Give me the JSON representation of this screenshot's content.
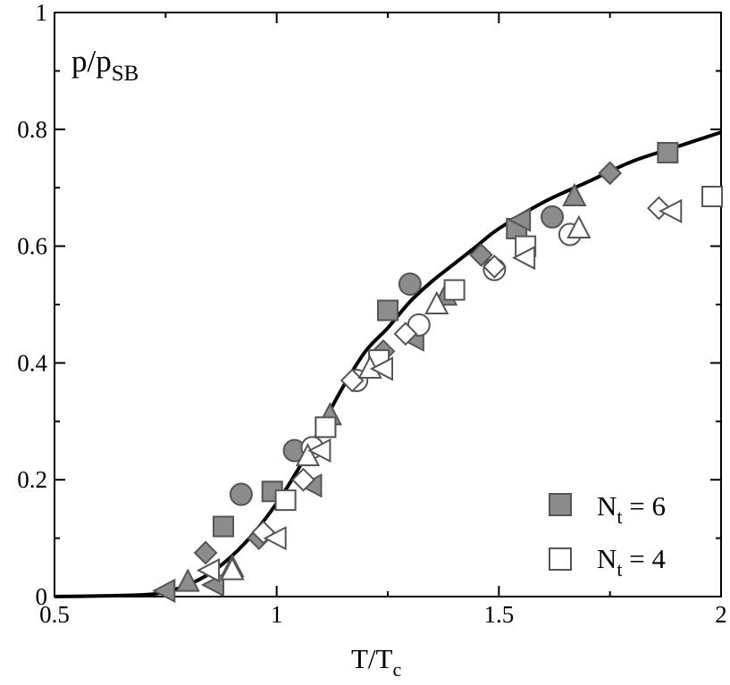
{
  "chart_data": {
    "type": "scatter",
    "title": "",
    "xlabel": "T/T",
    "xlabel_sub": "c",
    "ylabel": "p/p",
    "ylabel_sub": "SB",
    "xlim": [
      0.5,
      2.0
    ],
    "ylim": [
      0.0,
      1.0
    ],
    "x_ticks": [
      "0.5",
      "1",
      "1.5",
      "2"
    ],
    "x_tick_values": [
      0.5,
      1.0,
      1.5,
      2.0
    ],
    "y_ticks": [
      "0",
      "0.2",
      "0.4",
      "0.6",
      "0.8",
      "1"
    ],
    "y_tick_values": [
      0.0,
      0.2,
      0.4,
      0.6,
      0.8,
      1.0
    ],
    "legend": {
      "position": "bottom-right",
      "entries": [
        {
          "label_main": "N",
          "label_sub": "t",
          "label_rest": " = 6",
          "marker": "square",
          "filled": true
        },
        {
          "label_main": "N",
          "label_sub": "t",
          "label_rest": " = 4",
          "marker": "square",
          "filled": false
        }
      ]
    },
    "colors": {
      "filled": "#8c8c8c",
      "edge": "#555555",
      "open_fill": "#ffffff",
      "curve": "#000000"
    },
    "curve": {
      "name": "continuum curve",
      "x": [
        0.5,
        0.6,
        0.7,
        0.75,
        0.8,
        0.85,
        0.9,
        0.95,
        1.0,
        1.05,
        1.1,
        1.15,
        1.2,
        1.25,
        1.3,
        1.35,
        1.4,
        1.45,
        1.5,
        1.6,
        1.7,
        1.8,
        1.9,
        2.0
      ],
      "y": [
        0.0,
        0.001,
        0.003,
        0.008,
        0.02,
        0.04,
        0.07,
        0.11,
        0.16,
        0.22,
        0.29,
        0.36,
        0.42,
        0.46,
        0.505,
        0.54,
        0.57,
        0.6,
        0.63,
        0.675,
        0.71,
        0.745,
        0.77,
        0.795
      ]
    },
    "series": [
      {
        "name": "N_t = 6 filled squares",
        "marker": "square",
        "filled": true,
        "points": [
          [
            0.88,
            0.12
          ],
          [
            0.99,
            0.18
          ],
          [
            1.11,
            0.29
          ],
          [
            1.25,
            0.49
          ],
          [
            1.54,
            0.63
          ],
          [
            1.88,
            0.76
          ]
        ]
      },
      {
        "name": "N_t = 6 filled circles",
        "marker": "circle",
        "filled": true,
        "points": [
          [
            0.92,
            0.175
          ],
          [
            1.04,
            0.25
          ],
          [
            1.3,
            0.535
          ],
          [
            1.62,
            0.65
          ]
        ]
      },
      {
        "name": "N_t = 6 filled diamonds",
        "marker": "diamond",
        "filled": true,
        "points": [
          [
            0.84,
            0.075
          ],
          [
            0.96,
            0.1
          ],
          [
            1.24,
            0.42
          ],
          [
            1.46,
            0.585
          ],
          [
            1.75,
            0.725
          ]
        ]
      },
      {
        "name": "N_t = 6 filled up-triangles",
        "marker": "triangle-up",
        "filled": true,
        "points": [
          [
            0.8,
            0.025
          ],
          [
            0.9,
            0.05
          ],
          [
            1.12,
            0.31
          ],
          [
            1.38,
            0.515
          ],
          [
            1.67,
            0.685
          ]
        ]
      },
      {
        "name": "N_t = 6 filled left-triangles",
        "marker": "triangle-left",
        "filled": true,
        "points": [
          [
            0.75,
            0.01
          ],
          [
            0.86,
            0.02
          ],
          [
            1.08,
            0.19
          ],
          [
            1.31,
            0.44
          ],
          [
            1.55,
            0.645
          ]
        ]
      },
      {
        "name": "N_t = 4 open squares",
        "marker": "square",
        "filled": false,
        "points": [
          [
            1.02,
            0.165
          ],
          [
            1.11,
            0.29
          ],
          [
            1.23,
            0.405
          ],
          [
            1.4,
            0.525
          ],
          [
            1.56,
            0.6
          ],
          [
            1.98,
            0.685
          ]
        ]
      },
      {
        "name": "N_t = 4 open circles",
        "marker": "circle",
        "filled": false,
        "points": [
          [
            1.08,
            0.255
          ],
          [
            1.18,
            0.37
          ],
          [
            1.32,
            0.465
          ],
          [
            1.49,
            0.56
          ],
          [
            1.66,
            0.62
          ]
        ]
      },
      {
        "name": "N_t = 4 open diamonds",
        "marker": "diamond",
        "filled": false,
        "points": [
          [
            0.97,
            0.11
          ],
          [
            1.06,
            0.2
          ],
          [
            1.17,
            0.37
          ],
          [
            1.29,
            0.45
          ],
          [
            1.49,
            0.565
          ],
          [
            1.86,
            0.665
          ]
        ]
      },
      {
        "name": "N_t = 4 open up-triangles",
        "marker": "triangle-up",
        "filled": false,
        "points": [
          [
            0.9,
            0.045
          ],
          [
            1.07,
            0.24
          ],
          [
            1.21,
            0.39
          ],
          [
            1.36,
            0.5
          ],
          [
            1.68,
            0.63
          ]
        ]
      },
      {
        "name": "N_t = 4 open left-triangles",
        "marker": "triangle-left",
        "filled": false,
        "points": [
          [
            0.85,
            0.045
          ],
          [
            1.0,
            0.1
          ],
          [
            1.1,
            0.25
          ],
          [
            1.24,
            0.39
          ],
          [
            1.56,
            0.58
          ],
          [
            1.89,
            0.66
          ]
        ]
      }
    ]
  }
}
